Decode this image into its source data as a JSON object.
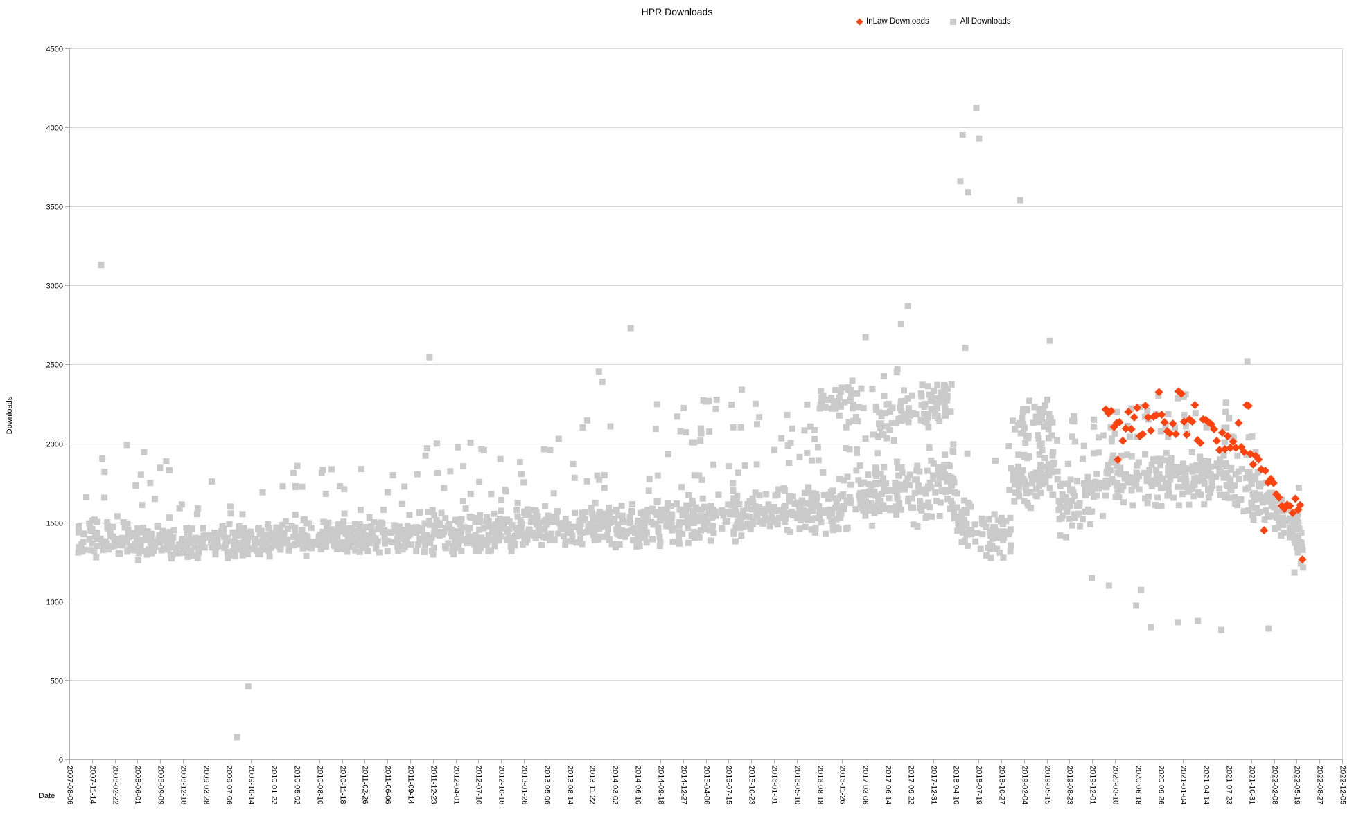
{
  "chart_data": {
    "type": "scatter",
    "title": "HPR Downloads",
    "xlabel": "Date",
    "ylabel": "Downloads",
    "ylim": [
      0,
      4500
    ],
    "y_ticks": [
      0,
      500,
      1000,
      1500,
      2000,
      2500,
      3000,
      3500,
      4000,
      4500
    ],
    "grid": "horizontal",
    "legend_position": "top-right",
    "x_tick_interval_days": 100,
    "x_total_days": 5600,
    "x_tick_labels": [
      "2007-08-06",
      "2007-11-14",
      "2008-02-22",
      "2008-06-01",
      "2008-09-09",
      "2008-12-18",
      "2009-03-28",
      "2009-07-06",
      "2009-10-14",
      "2010-01-22",
      "2010-05-02",
      "2010-08-10",
      "2010-11-18",
      "2011-02-26",
      "2011-06-06",
      "2011-09-14",
      "2011-12-23",
      "2012-04-01",
      "2012-07-10",
      "2012-10-18",
      "2013-01-26",
      "2013-05-06",
      "2013-08-14",
      "2013-11-22",
      "2014-03-02",
      "2014-06-10",
      "2014-09-18",
      "2014-12-27",
      "2015-04-06",
      "2015-07-15",
      "2015-10-23",
      "2016-01-31",
      "2016-05-10",
      "2016-08-18",
      "2016-11-26",
      "2017-03-06",
      "2017-06-14",
      "2017-09-22",
      "2017-12-31",
      "2018-04-10",
      "2018-07-19",
      "2018-10-27",
      "2019-02-04",
      "2019-05-15",
      "2019-08-23",
      "2019-12-01",
      "2020-03-10",
      "2020-06-18",
      "2020-09-26",
      "2021-01-04",
      "2021-04-14",
      "2021-07-23",
      "2021-10-31",
      "2022-02-08",
      "2022-05-19",
      "2022-08-27",
      "2022-12-05"
    ],
    "series": [
      {
        "name": "InLaw Downloads",
        "marker": "diamond",
        "color": "#ff420e",
        "points": [
          [
            4560,
            2215
          ],
          [
            4572,
            2190
          ],
          [
            4584,
            2205
          ],
          [
            4596,
            2103
          ],
          [
            4608,
            2129
          ],
          [
            4613,
            1897
          ],
          [
            4620,
            2134
          ],
          [
            4635,
            2016
          ],
          [
            4648,
            2094
          ],
          [
            4660,
            2200
          ],
          [
            4672,
            2090
          ],
          [
            4685,
            2165
          ],
          [
            4698,
            2226
          ],
          [
            4710,
            2046
          ],
          [
            4722,
            2059
          ],
          [
            4734,
            2239
          ],
          [
            4746,
            2165
          ],
          [
            4758,
            2081
          ],
          [
            4770,
            2169
          ],
          [
            4782,
            2178
          ],
          [
            4794,
            2325
          ],
          [
            4806,
            2182
          ],
          [
            4818,
            2134
          ],
          [
            4830,
            2077
          ],
          [
            4842,
            2064
          ],
          [
            4855,
            2125
          ],
          [
            4868,
            2059
          ],
          [
            4880,
            2330
          ],
          [
            4892,
            2315
          ],
          [
            4904,
            2138
          ],
          [
            4916,
            2055
          ],
          [
            4928,
            2152
          ],
          [
            4940,
            2138
          ],
          [
            4952,
            2243
          ],
          [
            4964,
            2020
          ],
          [
            4976,
            2003
          ],
          [
            4988,
            2152
          ],
          [
            5000,
            2148
          ],
          [
            5012,
            2134
          ],
          [
            5024,
            2121
          ],
          [
            5036,
            2090
          ],
          [
            5048,
            2016
          ],
          [
            5060,
            1958
          ],
          [
            5072,
            2068
          ],
          [
            5084,
            1963
          ],
          [
            5096,
            2046
          ],
          [
            5108,
            1972
          ],
          [
            5120,
            2011
          ],
          [
            5132,
            1972
          ],
          [
            5144,
            2129
          ],
          [
            5156,
            1976
          ],
          [
            5168,
            1946
          ],
          [
            5180,
            2243
          ],
          [
            5188,
            2238
          ],
          [
            5196,
            1933
          ],
          [
            5208,
            1867
          ],
          [
            5220,
            1920
          ],
          [
            5232,
            1898
          ],
          [
            5244,
            1836
          ],
          [
            5256,
            1450
          ],
          [
            5262,
            1827
          ],
          [
            5274,
            1753
          ],
          [
            5286,
            1775
          ],
          [
            5298,
            1749
          ],
          [
            5310,
            1678
          ],
          [
            5322,
            1657
          ],
          [
            5334,
            1604
          ],
          [
            5346,
            1586
          ],
          [
            5358,
            1612
          ],
          [
            5370,
            1604
          ],
          [
            5382,
            1560
          ],
          [
            5394,
            1650
          ],
          [
            5406,
            1580
          ],
          [
            5415,
            1610
          ],
          [
            5425,
            1266
          ]
        ]
      },
      {
        "name": "All Downloads",
        "marker": "square",
        "color": "#cacaca",
        "prng_seed": 20220613,
        "outlier_points": [
          [
            140,
            3130
          ],
          [
            155,
            1820
          ],
          [
            253,
            1990
          ],
          [
            329,
            1945
          ],
          [
            738,
            140
          ],
          [
            787,
            462
          ],
          [
            1585,
            2545
          ],
          [
            2330,
            2455
          ],
          [
            2345,
            2390
          ],
          [
            2470,
            2730
          ],
          [
            3503,
            2673
          ],
          [
            3659,
            2755
          ],
          [
            3689,
            2870
          ],
          [
            3920,
            3660
          ],
          [
            3930,
            3955
          ],
          [
            3955,
            3590
          ],
          [
            3990,
            4125
          ],
          [
            4002,
            3930
          ],
          [
            3942,
            2605
          ],
          [
            4183,
            3540
          ],
          [
            4314,
            2650
          ],
          [
            4498,
            1148
          ],
          [
            4574,
            1100
          ],
          [
            4693,
            973
          ],
          [
            4715,
            1073
          ],
          [
            4757,
            837
          ],
          [
            4876,
            868
          ],
          [
            4965,
            876
          ],
          [
            5068,
            819
          ],
          [
            5183,
            2520
          ],
          [
            5276,
            828
          ],
          [
            5390,
            1183
          ],
          [
            5405,
            1310
          ],
          [
            5412,
            1354
          ],
          [
            5418,
            1240
          ],
          [
            5428,
            1214
          ]
        ],
        "cloud_segments": [
          {
            "d0": 40,
            "d1": 500,
            "n": 170,
            "c0": 1400,
            "c1": 1380,
            "spread": 130,
            "tail": 420,
            "tail_p": 0.1,
            "min": 1150
          },
          {
            "d0": 500,
            "d1": 900,
            "n": 150,
            "c0": 1380,
            "c1": 1380,
            "spread": 120,
            "tail": 380,
            "tail_p": 0.08,
            "min": 1150
          },
          {
            "d0": 900,
            "d1": 1400,
            "n": 200,
            "c0": 1400,
            "c1": 1410,
            "spread": 130,
            "tail": 420,
            "tail_p": 0.09,
            "min": 1150
          },
          {
            "d0": 1400,
            "d1": 1900,
            "n": 200,
            "c0": 1420,
            "c1": 1430,
            "spread": 140,
            "tail": 480,
            "tail_p": 0.1,
            "min": 1130
          },
          {
            "d0": 1900,
            "d1": 2400,
            "n": 210,
            "c0": 1440,
            "c1": 1480,
            "spread": 150,
            "tail": 600,
            "tail_p": 0.12,
            "min": 1150
          },
          {
            "d0": 2400,
            "d1": 2900,
            "n": 210,
            "c0": 1480,
            "c1": 1530,
            "spread": 160,
            "tail": 650,
            "tail_p": 0.13,
            "min": 1160
          },
          {
            "d0": 2900,
            "d1": 3400,
            "n": 220,
            "c0": 1530,
            "c1": 1600,
            "spread": 180,
            "tail": 700,
            "tail_p": 0.15,
            "min": 1170
          },
          {
            "d0": 3400,
            "d1": 3700,
            "n": 140,
            "c0": 1620,
            "c1": 1700,
            "spread": 200,
            "tail": 680,
            "tail_p": 0.17,
            "min": 1180
          },
          {
            "d0": 3700,
            "d1": 3900,
            "n": 90,
            "c0": 1680,
            "c1": 1760,
            "spread": 240,
            "tail": 480,
            "tail_p": 0.15,
            "min": 1200
          },
          {
            "d0": 3745,
            "d1": 3865,
            "n": 55,
            "c0": 2230,
            "c1": 2280,
            "spread": 160,
            "tail": 0,
            "tail_p": 0,
            "min": 1900
          },
          {
            "d0": 3560,
            "d1": 3700,
            "n": 30,
            "c0": 2130,
            "c1": 2180,
            "spread": 140,
            "tail": 0,
            "tail_p": 0,
            "min": 1900
          },
          {
            "d0": 3300,
            "d1": 3460,
            "n": 28,
            "c0": 2270,
            "c1": 2300,
            "spread": 130,
            "tail": 0,
            "tail_p": 0,
            "min": 2000
          },
          {
            "d0": 3900,
            "d1": 4150,
            "n": 90,
            "c0": 1500,
            "c1": 1380,
            "spread": 170,
            "tail": 500,
            "tail_p": 0.12,
            "min": 1120
          },
          {
            "d0": 4150,
            "d1": 4350,
            "n": 100,
            "c0": 1750,
            "c1": 1850,
            "spread": 230,
            "tail": 430,
            "tail_p": 0.14,
            "min": 1200
          },
          {
            "d0": 4180,
            "d1": 4330,
            "n": 35,
            "c0": 2130,
            "c1": 2180,
            "spread": 150,
            "tail": 0,
            "tail_p": 0,
            "min": 1900
          },
          {
            "d0": 4350,
            "d1": 4550,
            "n": 80,
            "c0": 1600,
            "c1": 1700,
            "spread": 230,
            "tail": 380,
            "tail_p": 0.1,
            "min": 1130
          },
          {
            "d0": 4550,
            "d1": 5150,
            "n": 270,
            "c0": 1760,
            "c1": 1760,
            "spread": 185,
            "tail": 430,
            "tail_p": 0.12,
            "min": 1250
          },
          {
            "d0": 5150,
            "d1": 5300,
            "n": 60,
            "c0": 1700,
            "c1": 1600,
            "spread": 175,
            "tail": 260,
            "tail_p": 0.08,
            "min": 1250
          },
          {
            "d0": 5300,
            "d1": 5420,
            "n": 45,
            "c0": 1550,
            "c1": 1420,
            "spread": 140,
            "tail": 210,
            "tail_p": 0.06,
            "min": 1200
          },
          {
            "d0": 5360,
            "d1": 5432,
            "n": 20,
            "c0": 1430,
            "c1": 1380,
            "spread": 130,
            "tail": 0,
            "tail_p": 0,
            "min": 1180
          }
        ]
      }
    ]
  },
  "colors": {
    "background": "#ffffff",
    "grid": "#d7d7d7",
    "axis": "#b0b0b0",
    "text": "#000000",
    "inlaw": "#ff420e",
    "all": "#cacaca"
  }
}
